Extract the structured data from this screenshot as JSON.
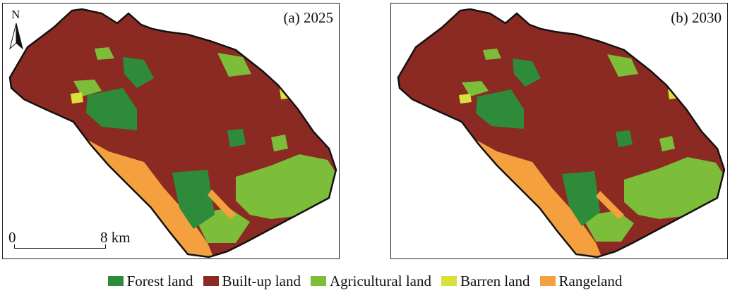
{
  "panels": [
    {
      "label": "(a) 2025"
    },
    {
      "label": "(b) 2030"
    }
  ],
  "north_arrow": {
    "letter": "N"
  },
  "scale_bar": {
    "start": "0",
    "end": "8 km"
  },
  "legend": [
    {
      "label": "Forest land",
      "color": "#2e8b3a"
    },
    {
      "label": "Built-up land",
      "color": "#8b2a22"
    },
    {
      "label": "Agricultural land",
      "color": "#7cbd3a"
    },
    {
      "label": "Barren land",
      "color": "#d8e03a"
    },
    {
      "label": "Rangeland",
      "color": "#f4a03e"
    }
  ]
}
